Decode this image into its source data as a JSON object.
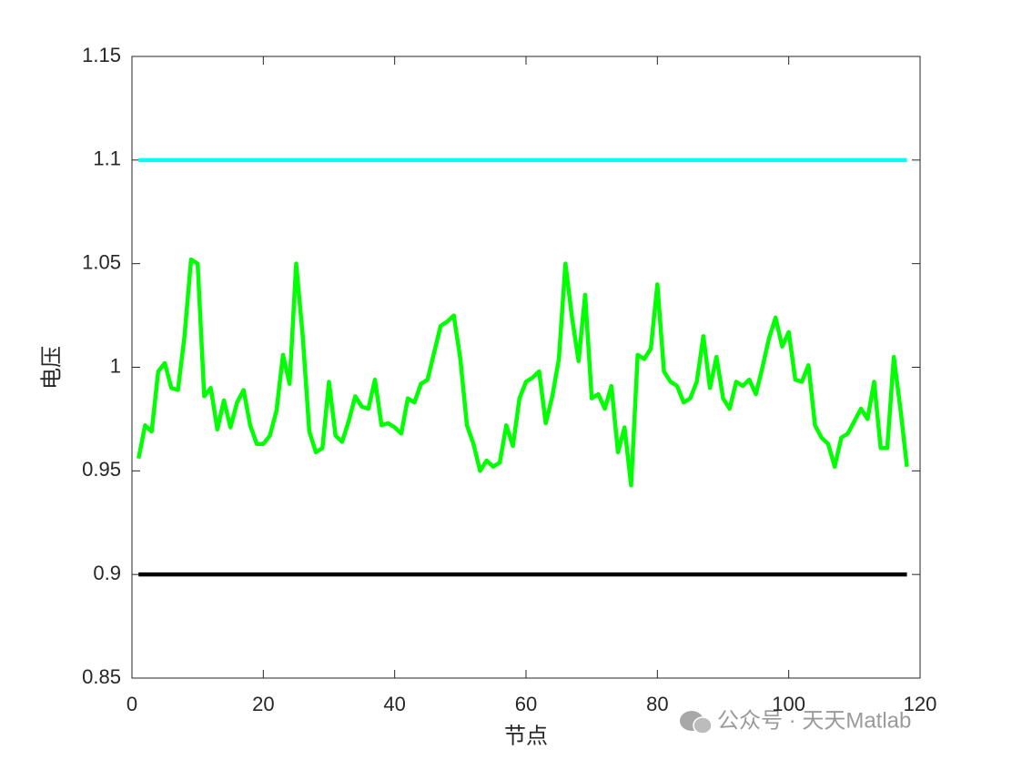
{
  "chart_data": {
    "type": "line",
    "xlabel": "节点",
    "ylabel": "电压",
    "watermark": "公众号 · 天天Matlab",
    "xlim": [
      0,
      120
    ],
    "xticks": [
      0,
      20,
      40,
      60,
      80,
      100,
      120
    ],
    "ylim": [
      0.85,
      1.15
    ],
    "yticks": [
      0.85,
      0.9,
      0.95,
      1,
      1.05,
      1.1,
      1.15
    ],
    "series": [
      {
        "color": "#00ffff",
        "x": [
          1,
          118
        ],
        "values": [
          1.1,
          1.1
        ]
      },
      {
        "color": "#000000",
        "x": [
          1,
          118
        ],
        "values": [
          0.9,
          0.9
        ]
      },
      {
        "color": "#00ff00",
        "x": [
          1,
          2,
          3,
          4,
          5,
          6,
          7,
          8,
          9,
          10,
          11,
          12,
          13,
          14,
          15,
          16,
          17,
          18,
          19,
          20,
          21,
          22,
          23,
          24,
          25,
          26,
          27,
          28,
          29,
          30,
          31,
          32,
          33,
          34,
          35,
          36,
          37,
          38,
          39,
          40,
          41,
          42,
          43,
          44,
          45,
          46,
          47,
          48,
          49,
          50,
          51,
          52,
          53,
          54,
          55,
          56,
          57,
          58,
          59,
          60,
          61,
          62,
          63,
          64,
          65,
          66,
          67,
          68,
          69,
          70,
          71,
          72,
          73,
          74,
          75,
          76,
          77,
          78,
          79,
          80,
          81,
          82,
          83,
          84,
          85,
          86,
          87,
          88,
          89,
          90,
          91,
          92,
          93,
          94,
          95,
          96,
          97,
          98,
          99,
          100,
          101,
          102,
          103,
          104,
          105,
          106,
          107,
          108,
          109,
          110,
          111,
          112,
          113,
          114,
          115,
          116,
          117,
          118
        ],
        "values": [
          0.956,
          0.972,
          0.969,
          0.998,
          1.002,
          0.99,
          0.989,
          1.015,
          1.052,
          1.05,
          0.986,
          0.99,
          0.97,
          0.984,
          0.971,
          0.983,
          0.989,
          0.972,
          0.963,
          0.963,
          0.967,
          0.979,
          1.006,
          0.992,
          1.05,
          1.015,
          0.969,
          0.959,
          0.961,
          0.993,
          0.967,
          0.964,
          0.974,
          0.986,
          0.981,
          0.98,
          0.994,
          0.972,
          0.973,
          0.971,
          0.968,
          0.985,
          0.983,
          0.992,
          0.994,
          1.007,
          1.02,
          1.022,
          1.025,
          1.004,
          0.972,
          0.963,
          0.95,
          0.955,
          0.952,
          0.954,
          0.972,
          0.962,
          0.985,
          0.993,
          0.995,
          0.998,
          0.973,
          0.986,
          1.004,
          1.05,
          1.024,
          1.003,
          1.035,
          0.985,
          0.987,
          0.98,
          0.991,
          0.959,
          0.971,
          0.943,
          1.006,
          1.004,
          1.009,
          1.04,
          0.998,
          0.993,
          0.991,
          0.983,
          0.985,
          0.993,
          1.015,
          0.99,
          1.005,
          0.985,
          0.98,
          0.993,
          0.991,
          0.994,
          0.987,
          1.0,
          1.014,
          1.024,
          1.01,
          1.017,
          0.994,
          0.993,
          1.001,
          0.972,
          0.966,
          0.963,
          0.952,
          0.966,
          0.968,
          0.974,
          0.98,
          0.975,
          0.993,
          0.961,
          0.961,
          1.005,
          0.98,
          0.952
        ]
      }
    ]
  }
}
